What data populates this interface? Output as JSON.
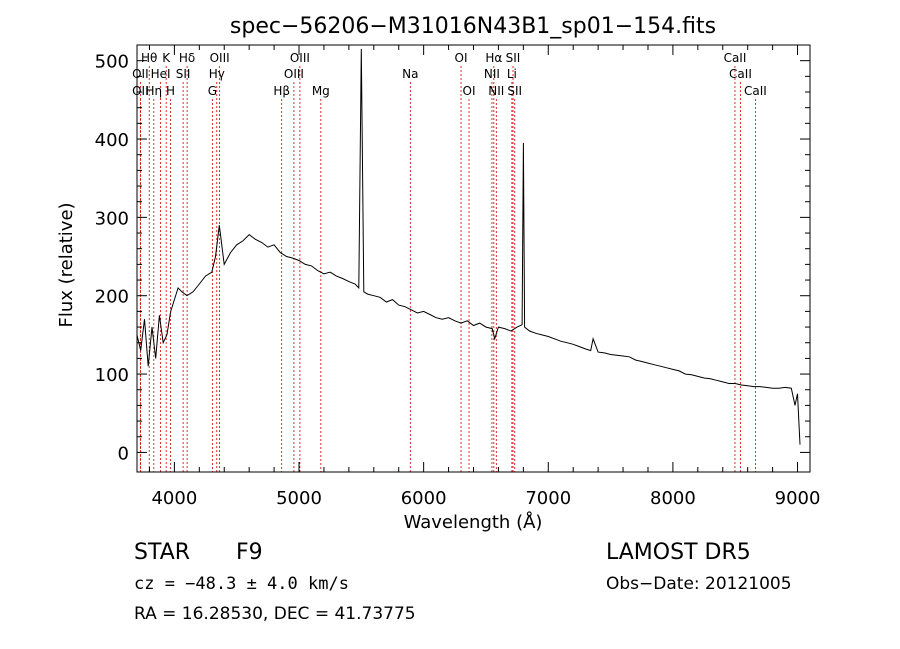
{
  "chart_data": {
    "type": "line",
    "title": "spec−56206−M31016N43B1_sp01−154.fits",
    "xlabel": "Wavelength (Å)",
    "ylabel": "Flux (relative)",
    "xlim": [
      3700,
      9100
    ],
    "ylim": [
      -25,
      520
    ],
    "xticks": [
      4000,
      5000,
      6000,
      7000,
      8000,
      9000
    ],
    "yticks": [
      0,
      100,
      200,
      300,
      400,
      500
    ],
    "grid": false,
    "series": [
      {
        "x": [
          3700,
          3730,
          3760,
          3790,
          3820,
          3850,
          3880,
          3910,
          3940,
          3970,
          4000,
          4030,
          4060,
          4100,
          4150,
          4200,
          4250,
          4300,
          4330,
          4360,
          4400,
          4450,
          4500,
          4550,
          4600,
          4650,
          4700,
          4750,
          4800,
          4850,
          4900,
          4950,
          5000,
          5050,
          5100,
          5150,
          5200,
          5250,
          5300,
          5350,
          5400,
          5450,
          5480,
          5500,
          5520,
          5550,
          5600,
          5650,
          5700,
          5750,
          5800,
          5850,
          5900,
          5950,
          6000,
          6050,
          6100,
          6150,
          6200,
          6250,
          6300,
          6350,
          6400,
          6450,
          6500,
          6550,
          6570,
          6600,
          6650,
          6700,
          6750,
          6790,
          6800,
          6810,
          6850,
          6900,
          6950,
          7000,
          7050,
          7100,
          7150,
          7200,
          7250,
          7300,
          7340,
          7360,
          7400,
          7450,
          7500,
          7550,
          7600,
          7650,
          7700,
          7750,
          7800,
          7850,
          7900,
          7950,
          8000,
          8050,
          8100,
          8150,
          8200,
          8250,
          8300,
          8350,
          8400,
          8450,
          8500,
          8550,
          8600,
          8650,
          8700,
          8750,
          8800,
          8850,
          8900,
          8950,
          8980,
          9000,
          9020
        ],
        "y": [
          150,
          130,
          170,
          110,
          160,
          120,
          175,
          140,
          150,
          180,
          195,
          210,
          205,
          200,
          205,
          215,
          225,
          230,
          250,
          290,
          240,
          255,
          265,
          270,
          278,
          272,
          268,
          262,
          265,
          255,
          250,
          248,
          245,
          240,
          238,
          232,
          228,
          230,
          225,
          222,
          218,
          215,
          210,
          515,
          205,
          202,
          200,
          198,
          192,
          195,
          188,
          186,
          182,
          178,
          180,
          176,
          172,
          170,
          172,
          168,
          165,
          168,
          162,
          165,
          160,
          158,
          145,
          160,
          158,
          155,
          160,
          163,
          395,
          160,
          155,
          152,
          150,
          148,
          145,
          142,
          140,
          138,
          135,
          132,
          130,
          145,
          128,
          127,
          125,
          124,
          123,
          122,
          118,
          116,
          114,
          112,
          110,
          108,
          106,
          104,
          100,
          99,
          97,
          95,
          94,
          92,
          90,
          88,
          88,
          86,
          85,
          84,
          84,
          83,
          82,
          82,
          83,
          82,
          60,
          75,
          10
        ]
      }
    ],
    "lines": [
      {
        "name": "Hθ",
        "wl": 3798,
        "row": 1
      },
      {
        "name": "OII",
        "wl": 3727,
        "row": 2
      },
      {
        "name": "OII",
        "wl": 3727,
        "row": 3
      },
      {
        "name": "Hη",
        "wl": 3835,
        "row": 3
      },
      {
        "name": "HeI",
        "wl": 3889,
        "row": 2
      },
      {
        "name": "K",
        "wl": 3934,
        "row": 1
      },
      {
        "name": "H",
        "wl": 3969,
        "row": 3
      },
      {
        "name": "Hδ",
        "wl": 4102,
        "row": 1
      },
      {
        "name": "SII",
        "wl": 4070,
        "row": 2
      },
      {
        "name": "G",
        "wl": 4305,
        "row": 3
      },
      {
        "name": "OIII",
        "wl": 4363,
        "row": 1
      },
      {
        "name": "Hγ",
        "wl": 4340,
        "row": 2
      },
      {
        "name": "Hβ",
        "wl": 4861,
        "row": 3
      },
      {
        "name": "OIII",
        "wl": 5007,
        "row": 1
      },
      {
        "name": "OIII",
        "wl": 4959,
        "row": 2
      },
      {
        "name": "Mg",
        "wl": 5175,
        "row": 3
      },
      {
        "name": "Na",
        "wl": 5893,
        "row": 2
      },
      {
        "name": "OI",
        "wl": 6300,
        "row": 1
      },
      {
        "name": "OI",
        "wl": 6364,
        "row": 3
      },
      {
        "name": "Hα",
        "wl": 6563,
        "row": 1
      },
      {
        "name": "NII",
        "wl": 6548,
        "row": 2
      },
      {
        "name": "NII",
        "wl": 6583,
        "row": 3
      },
      {
        "name": "SII",
        "wl": 6717,
        "row": 1
      },
      {
        "name": "Li",
        "wl": 6708,
        "row": 2
      },
      {
        "name": "SII",
        "wl": 6731,
        "row": 3
      },
      {
        "name": "CaII",
        "wl": 8498,
        "row": 1
      },
      {
        "name": "CaII",
        "wl": 8542,
        "row": 2
      },
      {
        "name": "CaII",
        "wl": 8662,
        "row": 3
      }
    ]
  },
  "info": {
    "class": "STAR",
    "subclass": "F9",
    "survey": "LAMOST DR5",
    "cz": "cz = −48.3 ± 4.0 km/s",
    "obs_date": "Obs−Date: 20121005",
    "radec": "RA =  16.28530, DEC =  41.73775"
  },
  "colors": {
    "line_marker": "#cc0000",
    "spectrum": "#000000"
  }
}
